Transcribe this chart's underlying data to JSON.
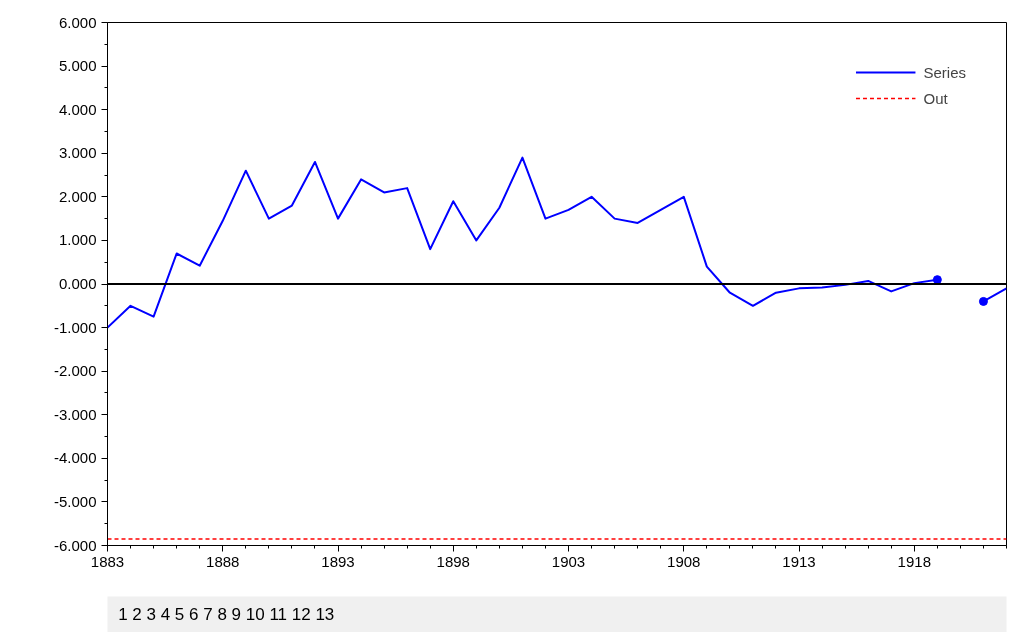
{
  "chart_data": {
    "type": "line",
    "x": [
      1883,
      1884,
      1885,
      1886,
      1887,
      1888,
      1889,
      1890,
      1891,
      1892,
      1893,
      1894,
      1895,
      1896,
      1897,
      1898,
      1899,
      1900,
      1901,
      1902,
      1903,
      1904,
      1905,
      1906,
      1907,
      1908,
      1909,
      1910,
      1911,
      1912,
      1913,
      1914,
      1915,
      1916,
      1917,
      1918,
      1919,
      1920,
      1921,
      1922
    ],
    "series": [
      {
        "name": "Series",
        "color": "#0000ff",
        "line_style": "solid",
        "values": [
          -1.0,
          -0.5,
          -0.75,
          0.7,
          0.42,
          1.45,
          2.6,
          1.5,
          1.8,
          2.8,
          1.5,
          2.4,
          2.1,
          2.2,
          0.8,
          1.9,
          1.0,
          1.75,
          2.9,
          1.5,
          1.7,
          2.0,
          1.5,
          1.4,
          1.7,
          2.0,
          0.4,
          -0.2,
          -0.5,
          -0.2,
          -0.1,
          -0.08,
          -0.02,
          0.07,
          -0.17,
          0.02,
          0.1,
          null,
          -0.4,
          -0.1
        ]
      },
      {
        "name": "Out",
        "color": "#ff0000",
        "line_style": "dashed",
        "values": [
          -5.85,
          -5.85,
          -5.85,
          -5.85,
          -5.85,
          -5.85,
          -5.85,
          -5.85,
          -5.85,
          -5.85,
          -5.85,
          -5.85,
          -5.85,
          -5.85,
          -5.85,
          -5.85,
          -5.85,
          -5.85,
          -5.85,
          -5.85,
          -5.85,
          -5.85,
          -5.85,
          -5.85,
          -5.85,
          -5.85,
          -5.85,
          -5.85,
          -5.85,
          -5.85,
          -5.85,
          -5.85,
          -5.85,
          -5.85,
          -5.85,
          -5.85,
          -5.85,
          -5.85,
          -5.85,
          -5.85
        ]
      }
    ],
    "xlim": [
      1883,
      1922
    ],
    "xticks": [
      1883,
      1888,
      1893,
      1898,
      1903,
      1908,
      1913,
      1918
    ],
    "ylim": [
      -6,
      6
    ],
    "yticks": [
      {
        "value": -6,
        "label": "-6.000"
      },
      {
        "value": -5,
        "label": "-5.000"
      },
      {
        "value": -4,
        "label": "-4.000"
      },
      {
        "value": -3,
        "label": "-3.000"
      },
      {
        "value": -2,
        "label": "-2.000"
      },
      {
        "value": -1,
        "label": "-1.000"
      },
      {
        "value": 0,
        "label": "0.000"
      },
      {
        "value": 1,
        "label": "1.000"
      },
      {
        "value": 2,
        "label": "2.000"
      },
      {
        "value": 3,
        "label": "3.000"
      },
      {
        "value": 4,
        "label": "4.000"
      },
      {
        "value": 5,
        "label": "5.000"
      },
      {
        "value": 6,
        "label": "6.000"
      }
    ],
    "ref_lines": [
      {
        "axis": "y",
        "value": 0,
        "color": "#000000"
      }
    ],
    "annotations": [
      "1 2 3 4 5 6 7 8 9 10 11 12 13"
    ],
    "grid": false,
    "legend": "top right"
  }
}
